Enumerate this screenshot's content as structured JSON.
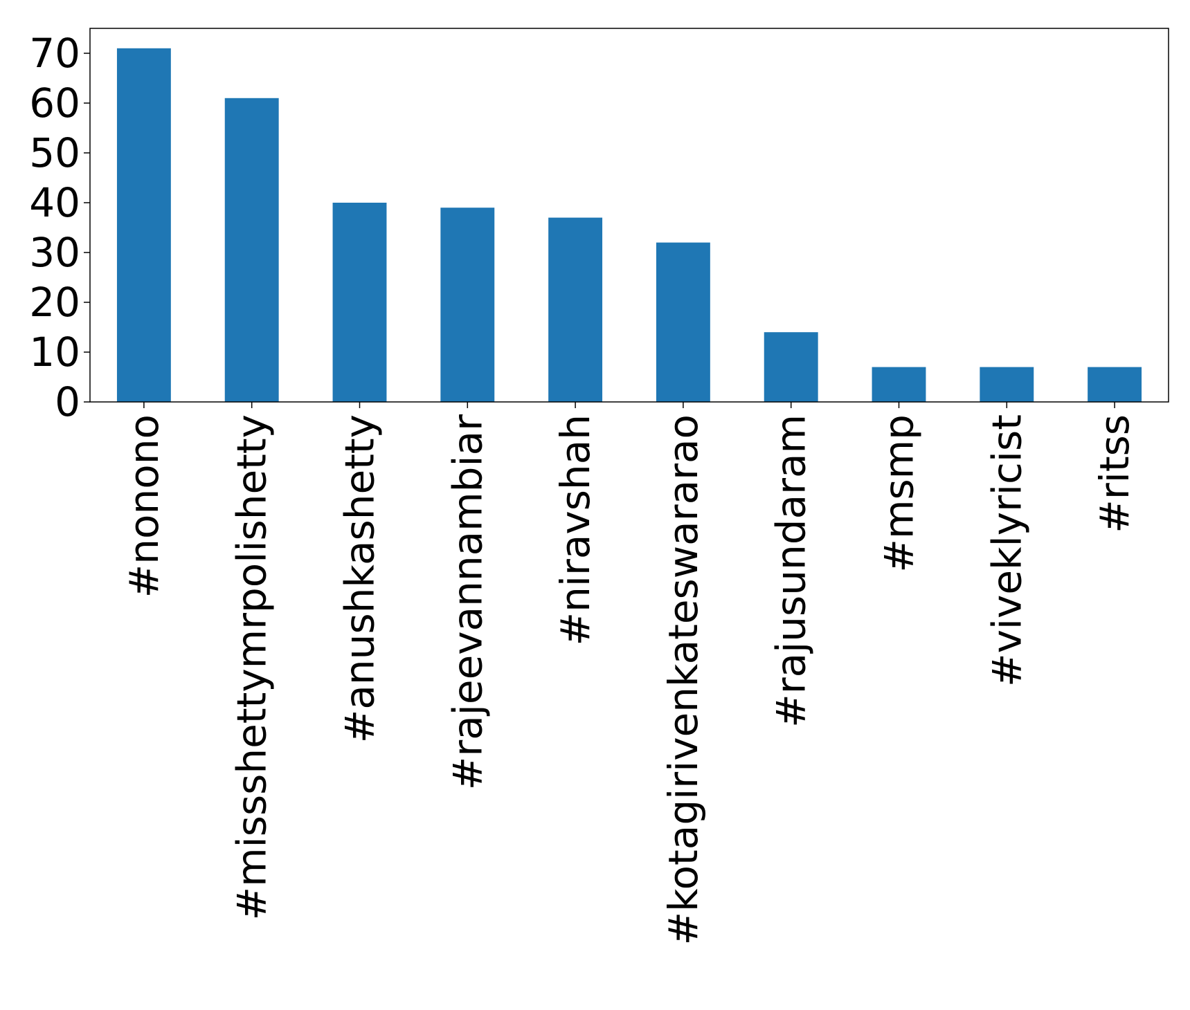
{
  "chart_data": {
    "type": "bar",
    "title": "",
    "xlabel": "",
    "ylabel": "",
    "categories": [
      "#nonono",
      "#missshettymrpolishetty",
      "#anushkashetty",
      "#rajeevannambiar",
      "#niravshah",
      "#kotagirivenkateswararao",
      "#rajusundaram",
      "#msmp",
      "#viveklyricist",
      "#ritss"
    ],
    "values": [
      71,
      61,
      40,
      39,
      37,
      32,
      14,
      7,
      7,
      7
    ],
    "ylim": [
      0,
      75
    ],
    "yticks": [
      0,
      10,
      20,
      30,
      40,
      50,
      60,
      70
    ],
    "grid": false,
    "bar_color": "#1f77b4"
  }
}
